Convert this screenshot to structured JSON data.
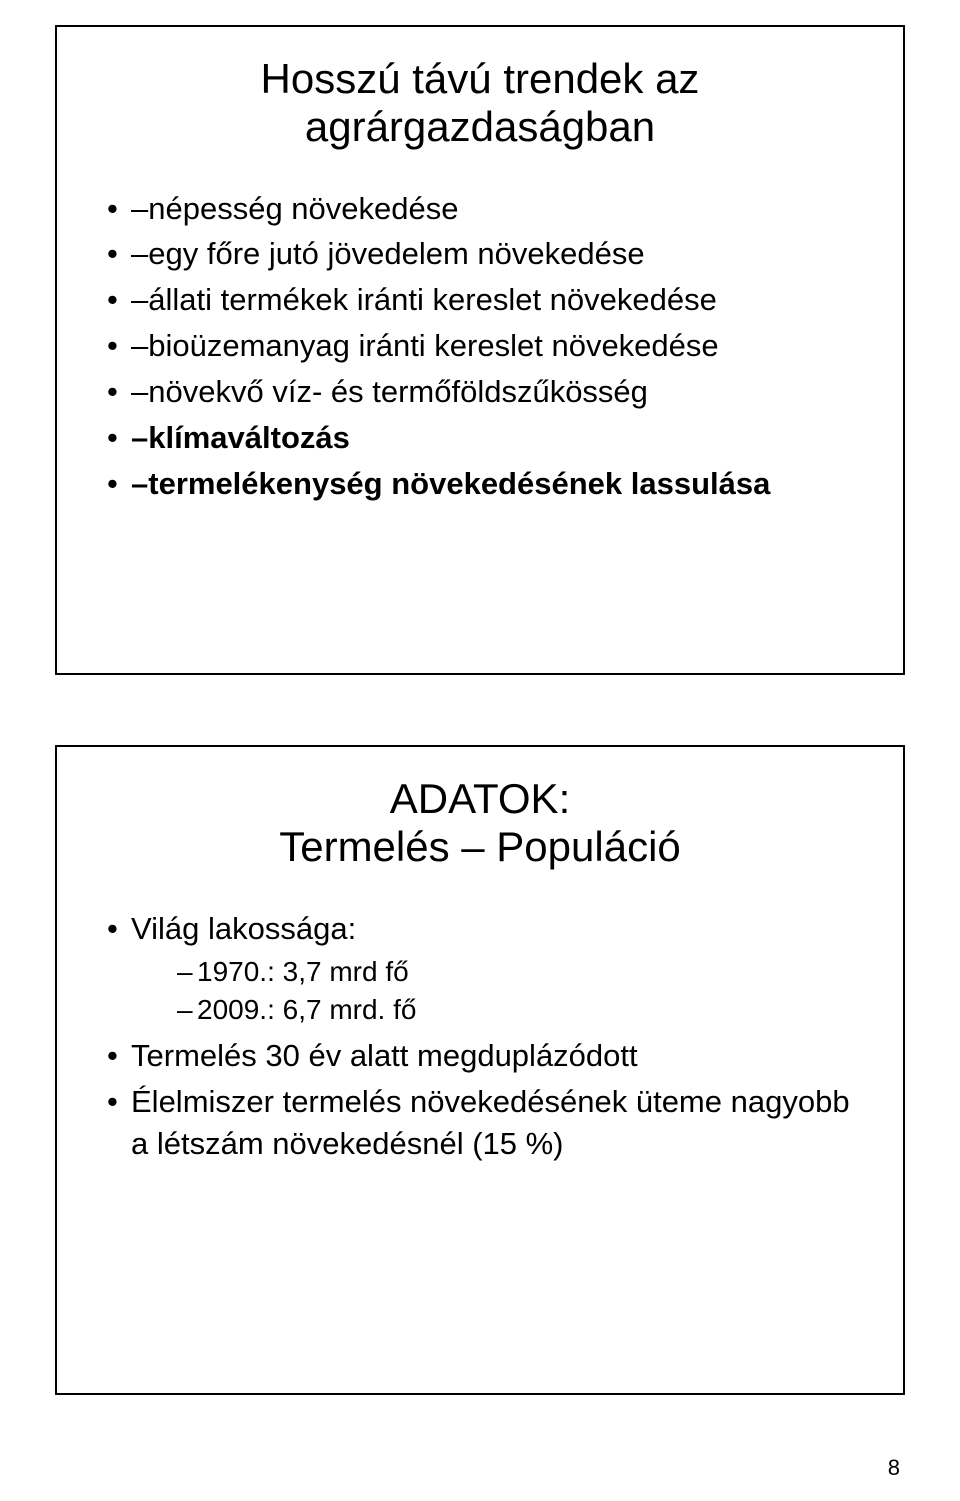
{
  "page_number": "8",
  "colors": {
    "background": "#ffffff",
    "text": "#000000",
    "border": "#000000"
  },
  "typography": {
    "title_fontsize_pt": 32,
    "bullet_fontsize_pt": 24,
    "sub_bullet_fontsize_pt": 21,
    "font_family": "Arial"
  },
  "slide1": {
    "title_line1": "Hosszú távú trendek az",
    "title_line2": "agrárgazdaságban",
    "bullets": [
      {
        "text": "népesség növekedése",
        "bold": false
      },
      {
        "text": "egy főre jutó jövedelem növekedése",
        "bold": false
      },
      {
        "text": "állati termékek iránti kereslet növekedése",
        "bold": false
      },
      {
        "text": "bioüzemanyag iránti kereslet növekedése",
        "bold": false
      },
      {
        "text": "növekvő víz- és termőföldszűkösség",
        "bold": false
      },
      {
        "text": "klímaváltozás",
        "bold": true
      },
      {
        "text": "termelékenység növekedésének lassulása",
        "bold": true
      }
    ]
  },
  "slide2": {
    "title_line1": "ADATOK:",
    "title_line2": "Termelés – Populáció",
    "items": [
      {
        "text": "Világ lakossága:",
        "sub": [
          "1970.: 3,7 mrd fő",
          "2009.: 6,7 mrd. fő"
        ]
      },
      {
        "text": "Termelés 30 év alatt megduplázódott",
        "sub": []
      },
      {
        "text": "Élelmiszer termelés növekedésének üteme nagyobb a létszám növekedésnél (15 %)",
        "sub": []
      }
    ]
  }
}
